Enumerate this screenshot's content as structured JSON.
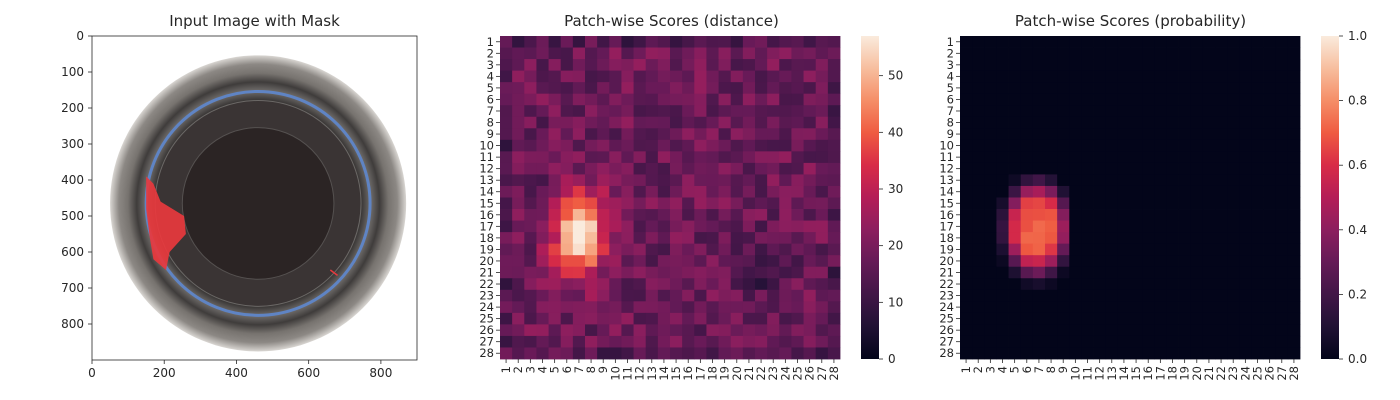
{
  "chart_data": [
    {
      "type": "image",
      "title": "Input Image with Mask",
      "xticks": [
        0,
        200,
        400,
        600,
        800
      ],
      "yticks": [
        0,
        100,
        200,
        300,
        400,
        500,
        600,
        700,
        800
      ],
      "xlim": [
        0,
        900
      ],
      "ylim": [
        900,
        0
      ],
      "image_size": [
        900,
        900
      ],
      "mask_color": "#e8383d",
      "content": {
        "vessel_center": [
          460,
          465
        ],
        "outer_rim_radius": 410,
        "blue_ring_radius": 310,
        "inner_radius": 210,
        "mask_region_y": [
          390,
          650
        ],
        "mask_region_x": [
          155,
          260
        ]
      }
    },
    {
      "type": "heatmap",
      "title": "Patch-wise Scores (distance)",
      "rows": [
        "1",
        "2",
        "3",
        "4",
        "5",
        "6",
        "7",
        "8",
        "9",
        "10",
        "11",
        "12",
        "13",
        "14",
        "15",
        "16",
        "17",
        "18",
        "19",
        "20",
        "21",
        "22",
        "23",
        "24",
        "25",
        "26",
        "27",
        "28"
      ],
      "cols": [
        "1",
        "2",
        "3",
        "4",
        "5",
        "6",
        "7",
        "8",
        "9",
        "10",
        "11",
        "12",
        "13",
        "14",
        "15",
        "16",
        "17",
        "18",
        "19",
        "20",
        "21",
        "22",
        "23",
        "24",
        "25",
        "26",
        "27",
        "28"
      ],
      "colorbar": {
        "min": 0,
        "max": 57,
        "ticks": [
          0,
          10,
          20,
          30,
          40,
          50
        ]
      },
      "colormap": "rocket",
      "background_level": 18,
      "hotspots": [
        {
          "row": 17.5,
          "col": 7,
          "peak": 57,
          "sigma_row": 2.6,
          "sigma_col": 1.6
        },
        {
          "row": 15,
          "col": 6,
          "peak": 12,
          "sigma_row": 3,
          "sigma_col": 2
        },
        {
          "row": 21,
          "col": 22,
          "peak": 8,
          "sigma_row": 2,
          "sigma_col": 2
        }
      ]
    },
    {
      "type": "heatmap",
      "title": "Patch-wise Scores (probability)",
      "rows": [
        "1",
        "2",
        "3",
        "4",
        "5",
        "6",
        "7",
        "8",
        "9",
        "10",
        "11",
        "12",
        "13",
        "14",
        "15",
        "16",
        "17",
        "18",
        "19",
        "20",
        "21",
        "22",
        "23",
        "24",
        "25",
        "26",
        "27",
        "28"
      ],
      "cols": [
        "1",
        "2",
        "3",
        "4",
        "5",
        "6",
        "7",
        "8",
        "9",
        "10",
        "11",
        "12",
        "13",
        "14",
        "15",
        "16",
        "17",
        "18",
        "19",
        "20",
        "21",
        "22",
        "23",
        "24",
        "25",
        "26",
        "27",
        "28"
      ],
      "colorbar": {
        "min": 0.0,
        "max": 1.0,
        "ticks": [
          "0.0",
          "0.2",
          "0.4",
          "0.6",
          "0.8",
          "1.0"
        ]
      },
      "colormap": "rocket",
      "background_level": 0.0,
      "nonzero_region": {
        "rows": [
          12,
          22
        ],
        "cols": [
          4,
          9
        ]
      },
      "peak": 0.72
    }
  ]
}
